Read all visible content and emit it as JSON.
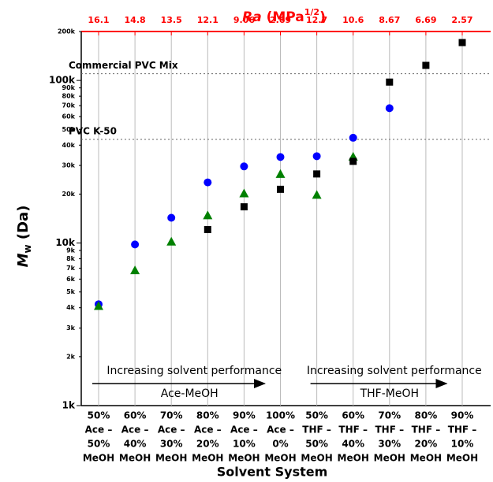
{
  "chart_data": {
    "type": "scatter",
    "x2_label": {
      "symbol": "Ra",
      "unit": "(MPa",
      "exponent": "1/2",
      "close": ")"
    },
    "ra_values": [
      "16.1",
      "14.8",
      "13.5",
      "12.1",
      "9.06",
      "2.69",
      "12.7",
      "10.6",
      "8.67",
      "6.69",
      "2.57"
    ],
    "y_label": {
      "symbol": "M",
      "subscript": "w",
      "unit": "(Da)"
    },
    "x_label": "Solvent System",
    "categories": [
      [
        "50%",
        "Ace –",
        "50%",
        "MeOH"
      ],
      [
        "60%",
        "Ace –",
        "40%",
        "MeOH"
      ],
      [
        "70%",
        "Ace –",
        "30%",
        "MeOH"
      ],
      [
        "80%",
        "Ace –",
        "20%",
        "MeOH"
      ],
      [
        "90%",
        "Ace –",
        "10%",
        "MeOH"
      ],
      [
        "100%",
        "Ace –",
        "0%",
        "MeOH"
      ],
      [
        "50%",
        "THF –",
        "50%",
        "MeOH"
      ],
      [
        "60%",
        "THF –",
        "40%",
        "MeOH"
      ],
      [
        "70%",
        "THF –",
        "30%",
        "MeOH"
      ],
      [
        "80%",
        "THF –",
        "20%",
        "MeOH"
      ],
      [
        "90%",
        "THF –",
        "10%",
        "MeOH"
      ]
    ],
    "series": [
      {
        "marker": "circle",
        "color": "#0000ff",
        "values": [
          4200,
          9800,
          14300,
          23600,
          29600,
          33800,
          34200,
          44400,
          67500,
          null,
          null
        ]
      },
      {
        "marker": "triangle",
        "color": "#008000",
        "values": [
          4100,
          6800,
          10200,
          14800,
          20200,
          26600,
          19800,
          34000,
          null,
          null,
          null
        ]
      },
      {
        "marker": "square",
        "color": "#000000",
        "values": [
          null,
          null,
          null,
          12100,
          16700,
          21400,
          26600,
          31800,
          97700,
          123800,
          171000
        ]
      }
    ],
    "log_y": true,
    "ylim": [
      1000,
      200000
    ],
    "yticks": [
      {
        "value": 1000,
        "label": "1k"
      },
      {
        "value": 2000,
        "label": "2k"
      },
      {
        "value": 3000,
        "label": "3k"
      },
      {
        "value": 4000,
        "label": "4k"
      },
      {
        "value": 5000,
        "label": "5k"
      },
      {
        "value": 6000,
        "label": "6k"
      },
      {
        "value": 7000,
        "label": "7k"
      },
      {
        "value": 8000,
        "label": "8k"
      },
      {
        "value": 9000,
        "label": "9k"
      },
      {
        "value": 10000,
        "label": "10k"
      },
      {
        "value": 20000,
        "label": "20k"
      },
      {
        "value": 30000,
        "label": "30k"
      },
      {
        "value": 40000,
        "label": "40k"
      },
      {
        "value": 50000,
        "label": "50k"
      },
      {
        "value": 60000,
        "label": "60k"
      },
      {
        "value": 70000,
        "label": "70k"
      },
      {
        "value": 80000,
        "label": "80k"
      },
      {
        "value": 90000,
        "label": "90k"
      },
      {
        "value": 100000,
        "label": "100k"
      },
      {
        "value": 200000,
        "label": "200k"
      }
    ],
    "reference_lines": [
      {
        "label": "Commercial PVC Mix",
        "value": 110000
      },
      {
        "label": "PVC K-50",
        "value": 43400
      }
    ],
    "annotations": [
      {
        "text": "Increasing solvent performance",
        "group": "Ace-MeOH",
        "from": 0,
        "to": 5
      },
      {
        "text": "Increasing solvent performance",
        "group": "THF-MeOH",
        "from": 6,
        "to": 10
      }
    ],
    "grid": true
  }
}
